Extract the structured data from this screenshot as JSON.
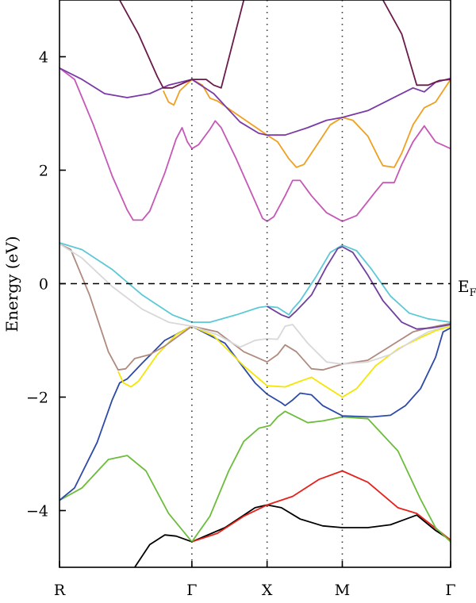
{
  "chart_data": {
    "type": "line",
    "title": "",
    "ylabel": "Energy (eV)",
    "xlabel": "",
    "ylim": [
      -5,
      5
    ],
    "xlim": [
      0,
      5.2
    ],
    "grid": false,
    "legend": "none",
    "fermi_level": {
      "y": 0,
      "label": "E",
      "label_sub": "F"
    },
    "high_symmetry_points": [
      {
        "label": "R",
        "x": 0
      },
      {
        "label": "Γ",
        "x": 1.76
      },
      {
        "label": "X",
        "x": 2.76
      },
      {
        "label": "M",
        "x": 3.76
      },
      {
        "label": "Γ",
        "x": 5.2
      }
    ],
    "y_ticks": [
      {
        "value": 4,
        "label": "4"
      },
      {
        "value": 2,
        "label": "2"
      },
      {
        "value": 0,
        "label": "0"
      },
      {
        "value": -2,
        "label": "−2"
      },
      {
        "value": -4,
        "label": "−4"
      }
    ],
    "series": [
      {
        "color": "#000000",
        "points": [
          [
            1.0,
            -5.0
          ],
          [
            1.2,
            -4.6
          ],
          [
            1.4,
            -4.43
          ],
          [
            1.55,
            -4.45
          ],
          [
            1.76,
            -4.55
          ],
          [
            2.2,
            -4.3
          ],
          [
            2.6,
            -3.95
          ],
          [
            2.76,
            -3.9
          ],
          [
            2.95,
            -3.95
          ],
          [
            3.2,
            -4.15
          ],
          [
            3.5,
            -4.27
          ],
          [
            3.76,
            -4.3
          ],
          [
            4.1,
            -4.3
          ],
          [
            4.4,
            -4.25
          ],
          [
            4.75,
            -4.08
          ],
          [
            5.0,
            -4.35
          ],
          [
            5.2,
            -4.52
          ]
        ]
      },
      {
        "color": "#e8201a",
        "points": [
          [
            1.76,
            -4.55
          ],
          [
            2.1,
            -4.4
          ],
          [
            2.45,
            -4.1
          ],
          [
            2.76,
            -3.9
          ],
          [
            3.1,
            -3.75
          ],
          [
            3.45,
            -3.45
          ],
          [
            3.76,
            -3.3
          ],
          [
            4.1,
            -3.5
          ],
          [
            4.5,
            -3.95
          ],
          [
            4.75,
            -4.05
          ],
          [
            5.2,
            -4.52
          ]
        ]
      },
      {
        "color": "#6cbd3c",
        "points": [
          [
            0,
            -3.82
          ],
          [
            0.3,
            -3.6
          ],
          [
            0.65,
            -3.1
          ],
          [
            0.9,
            -3.03
          ],
          [
            1.15,
            -3.3
          ],
          [
            1.45,
            -4.05
          ],
          [
            1.76,
            -4.55
          ],
          [
            2.0,
            -4.1
          ],
          [
            2.25,
            -3.3
          ],
          [
            2.45,
            -2.78
          ],
          [
            2.65,
            -2.55
          ],
          [
            2.8,
            -2.5
          ],
          [
            2.9,
            -2.35
          ],
          [
            3.0,
            -2.25
          ],
          [
            3.3,
            -2.45
          ],
          [
            3.5,
            -2.42
          ],
          [
            3.76,
            -2.35
          ],
          [
            4.1,
            -2.38
          ],
          [
            4.5,
            -2.95
          ],
          [
            4.8,
            -3.8
          ],
          [
            5.0,
            -4.3
          ],
          [
            5.2,
            -4.55
          ]
        ]
      },
      {
        "color": "#2e4aa8",
        "points": [
          [
            0,
            -3.82
          ],
          [
            0.2,
            -3.6
          ],
          [
            0.5,
            -2.8
          ],
          [
            0.7,
            -2.05
          ],
          [
            0.8,
            -1.75
          ],
          [
            0.9,
            -1.68
          ],
          [
            1.1,
            -1.4
          ],
          [
            1.4,
            -1.0
          ],
          [
            1.76,
            -0.75
          ],
          [
            2.2,
            -1.05
          ],
          [
            2.6,
            -1.75
          ],
          [
            2.76,
            -1.95
          ],
          [
            2.95,
            -2.1
          ],
          [
            3.0,
            -2.15
          ],
          [
            3.1,
            -2.05
          ],
          [
            3.2,
            -1.93
          ],
          [
            3.35,
            -1.96
          ],
          [
            3.5,
            -2.15
          ],
          [
            3.76,
            -2.33
          ],
          [
            4.15,
            -2.35
          ],
          [
            4.4,
            -2.32
          ],
          [
            4.6,
            -2.15
          ],
          [
            4.8,
            -1.85
          ],
          [
            5.0,
            -1.3
          ],
          [
            5.1,
            -0.85
          ],
          [
            5.2,
            -0.78
          ]
        ]
      },
      {
        "color": "#f5e600",
        "points": [
          [
            0.78,
            -1.55
          ],
          [
            0.85,
            -1.75
          ],
          [
            0.95,
            -1.82
          ],
          [
            1.05,
            -1.72
          ],
          [
            1.3,
            -1.25
          ],
          [
            1.55,
            -0.9
          ],
          [
            1.76,
            -0.75
          ],
          [
            2.05,
            -0.92
          ],
          [
            2.45,
            -1.45
          ],
          [
            2.76,
            -1.8
          ],
          [
            3.0,
            -1.82
          ],
          [
            3.2,
            -1.72
          ],
          [
            3.35,
            -1.65
          ],
          [
            3.5,
            -1.78
          ],
          [
            3.76,
            -2.0
          ],
          [
            3.95,
            -1.85
          ],
          [
            4.2,
            -1.45
          ],
          [
            4.5,
            -1.15
          ],
          [
            4.8,
            -0.95
          ],
          [
            5.0,
            -0.83
          ],
          [
            5.2,
            -0.75
          ]
        ]
      },
      {
        "color": "#b08a7e",
        "points": [
          [
            0,
            0.7
          ],
          [
            0.15,
            0.6
          ],
          [
            0.4,
            -0.2
          ],
          [
            0.65,
            -1.2
          ],
          [
            0.78,
            -1.52
          ],
          [
            0.88,
            -1.5
          ],
          [
            1.0,
            -1.32
          ],
          [
            1.2,
            -1.25
          ],
          [
            1.4,
            -1.1
          ],
          [
            1.76,
            -0.75
          ],
          [
            2.1,
            -0.85
          ],
          [
            2.45,
            -1.2
          ],
          [
            2.76,
            -1.38
          ],
          [
            2.9,
            -1.25
          ],
          [
            3.0,
            -1.08
          ],
          [
            3.15,
            -1.2
          ],
          [
            3.35,
            -1.5
          ],
          [
            3.5,
            -1.52
          ],
          [
            3.76,
            -1.42
          ],
          [
            4.1,
            -1.35
          ],
          [
            4.4,
            -1.1
          ],
          [
            4.7,
            -0.85
          ],
          [
            4.9,
            -0.78
          ],
          [
            5.2,
            -0.7
          ]
        ]
      },
      {
        "color": "#d8d8d8",
        "points": [
          [
            0,
            0.7
          ],
          [
            0.3,
            0.45
          ],
          [
            0.7,
            -0.05
          ],
          [
            1.1,
            -0.45
          ],
          [
            1.45,
            -0.68
          ],
          [
            1.76,
            -0.75
          ],
          [
            2.1,
            -0.9
          ],
          [
            2.4,
            -1.12
          ],
          [
            2.6,
            -1.0
          ],
          [
            2.76,
            -0.97
          ],
          [
            2.9,
            -0.98
          ],
          [
            3.0,
            -0.75
          ],
          [
            3.1,
            -0.72
          ],
          [
            3.3,
            -1.05
          ],
          [
            3.55,
            -1.38
          ],
          [
            3.76,
            -1.42
          ],
          [
            4.1,
            -1.38
          ],
          [
            4.4,
            -1.25
          ],
          [
            4.7,
            -1.0
          ],
          [
            4.9,
            -0.85
          ],
          [
            5.2,
            -0.72
          ]
        ]
      },
      {
        "color": "#5cc9d7",
        "points": [
          [
            0,
            0.72
          ],
          [
            0.3,
            0.6
          ],
          [
            0.7,
            0.25
          ],
          [
            1.1,
            -0.2
          ],
          [
            1.5,
            -0.55
          ],
          [
            1.76,
            -0.68
          ],
          [
            2.0,
            -0.68
          ],
          [
            2.35,
            -0.55
          ],
          [
            2.65,
            -0.42
          ],
          [
            2.76,
            -0.4
          ],
          [
            2.9,
            -0.42
          ],
          [
            3.05,
            -0.55
          ],
          [
            3.1,
            -0.45
          ],
          [
            3.2,
            -0.3
          ],
          [
            3.4,
            0.1
          ],
          [
            3.6,
            0.55
          ],
          [
            3.76,
            0.68
          ],
          [
            3.95,
            0.58
          ],
          [
            4.15,
            0.25
          ],
          [
            4.4,
            -0.22
          ],
          [
            4.65,
            -0.52
          ],
          [
            4.9,
            -0.62
          ],
          [
            5.2,
            -0.68
          ]
        ]
      },
      {
        "color": "#7040a0",
        "points": [
          [
            2.76,
            -0.4
          ],
          [
            2.95,
            -0.55
          ],
          [
            3.05,
            -0.6
          ],
          [
            3.15,
            -0.48
          ],
          [
            3.35,
            -0.2
          ],
          [
            3.55,
            0.3
          ],
          [
            3.7,
            0.62
          ],
          [
            3.76,
            0.65
          ],
          [
            3.9,
            0.55
          ],
          [
            4.1,
            0.15
          ],
          [
            4.3,
            -0.3
          ],
          [
            4.55,
            -0.68
          ],
          [
            4.75,
            -0.8
          ],
          [
            4.95,
            -0.78
          ],
          [
            5.2,
            -0.72
          ]
        ]
      },
      {
        "color": "#c558b7",
        "points": [
          [
            0,
            3.8
          ],
          [
            0.2,
            3.6
          ],
          [
            0.45,
            2.8
          ],
          [
            0.7,
            1.9
          ],
          [
            0.9,
            1.3
          ],
          [
            0.98,
            1.12
          ],
          [
            1.1,
            1.12
          ],
          [
            1.2,
            1.28
          ],
          [
            1.4,
            1.95
          ],
          [
            1.55,
            2.55
          ],
          [
            1.63,
            2.75
          ],
          [
            1.7,
            2.5
          ],
          [
            1.76,
            2.38
          ],
          [
            1.85,
            2.45
          ],
          [
            2.0,
            2.72
          ],
          [
            2.07,
            2.87
          ],
          [
            2.15,
            2.75
          ],
          [
            2.35,
            2.2
          ],
          [
            2.55,
            1.6
          ],
          [
            2.7,
            1.15
          ],
          [
            2.76,
            1.1
          ],
          [
            2.85,
            1.18
          ],
          [
            3.0,
            1.55
          ],
          [
            3.1,
            1.82
          ],
          [
            3.2,
            1.82
          ],
          [
            3.35,
            1.55
          ],
          [
            3.55,
            1.25
          ],
          [
            3.76,
            1.1
          ],
          [
            3.95,
            1.2
          ],
          [
            4.1,
            1.45
          ],
          [
            4.2,
            1.62
          ],
          [
            4.3,
            1.78
          ],
          [
            4.45,
            1.78
          ],
          [
            4.55,
            2.1
          ],
          [
            4.7,
            2.5
          ],
          [
            4.85,
            2.78
          ],
          [
            5.0,
            2.5
          ],
          [
            5.2,
            2.38
          ]
        ]
      },
      {
        "color": "#f0a020",
        "points": [
          [
            1.38,
            3.4
          ],
          [
            1.45,
            3.2
          ],
          [
            1.52,
            3.15
          ],
          [
            1.6,
            3.4
          ],
          [
            1.76,
            3.6
          ],
          [
            1.9,
            3.5
          ],
          [
            2.0,
            3.27
          ],
          [
            2.1,
            3.22
          ],
          [
            2.76,
            2.62
          ],
          [
            2.9,
            2.5
          ],
          [
            3.05,
            2.2
          ],
          [
            3.15,
            2.05
          ],
          [
            3.25,
            2.1
          ],
          [
            3.45,
            2.5
          ],
          [
            3.6,
            2.8
          ],
          [
            3.76,
            2.93
          ],
          [
            3.9,
            2.88
          ],
          [
            4.1,
            2.6
          ],
          [
            4.25,
            2.2
          ],
          [
            4.3,
            2.08
          ],
          [
            4.45,
            2.05
          ],
          [
            4.55,
            2.3
          ],
          [
            4.7,
            2.8
          ],
          [
            4.85,
            3.1
          ],
          [
            5.0,
            3.2
          ],
          [
            5.2,
            3.6
          ]
        ]
      },
      {
        "color": "#7a3aa6",
        "points": [
          [
            0,
            3.8
          ],
          [
            0.3,
            3.6
          ],
          [
            0.6,
            3.35
          ],
          [
            0.9,
            3.28
          ],
          [
            1.2,
            3.35
          ],
          [
            1.45,
            3.5
          ],
          [
            1.76,
            3.6
          ],
          [
            2.05,
            3.35
          ],
          [
            2.4,
            2.85
          ],
          [
            2.65,
            2.65
          ],
          [
            2.76,
            2.62
          ],
          [
            3.0,
            2.62
          ],
          [
            3.3,
            2.75
          ],
          [
            3.55,
            2.88
          ],
          [
            3.76,
            2.93
          ],
          [
            4.1,
            3.05
          ],
          [
            4.4,
            3.25
          ],
          [
            4.7,
            3.45
          ],
          [
            4.85,
            3.38
          ],
          [
            5.0,
            3.55
          ],
          [
            5.2,
            3.62
          ]
        ]
      },
      {
        "color": "#6a1a4a",
        "points": [
          [
            0.8,
            5.0
          ],
          [
            1.05,
            4.4
          ],
          [
            1.3,
            3.65
          ],
          [
            1.38,
            3.45
          ],
          [
            1.5,
            3.45
          ],
          [
            1.76,
            3.6
          ],
          [
            1.95,
            3.6
          ],
          [
            2.05,
            3.5
          ],
          [
            2.15,
            3.45
          ],
          [
            2.45,
            5.0
          ]
        ]
      },
      {
        "color": "#6a1a4a",
        "points": [
          [
            4.3,
            5.0
          ],
          [
            4.55,
            4.4
          ],
          [
            4.75,
            3.5
          ],
          [
            4.9,
            3.5
          ],
          [
            5.05,
            3.58
          ],
          [
            5.2,
            3.6
          ]
        ]
      }
    ]
  }
}
